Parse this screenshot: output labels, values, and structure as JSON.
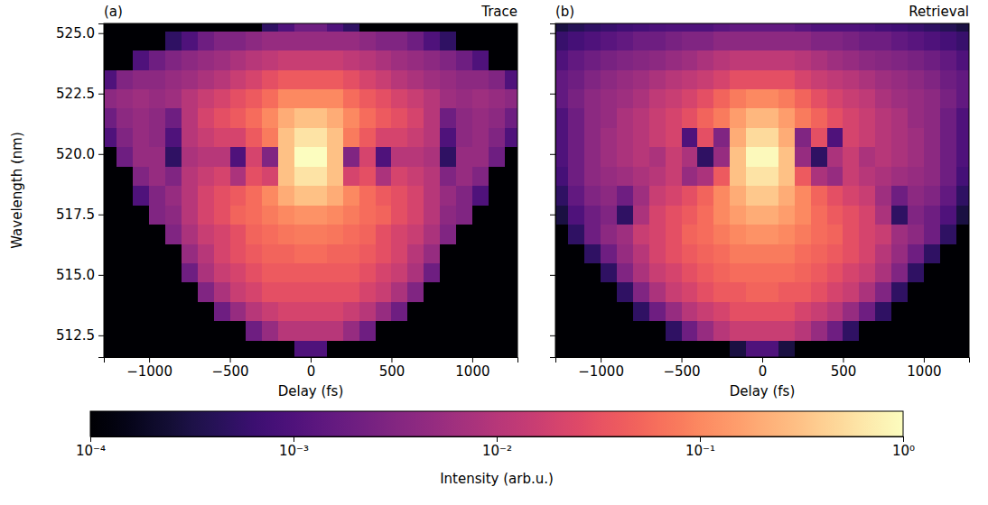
{
  "chart_data": [
    {
      "type": "heatmap",
      "title": "Trace",
      "annotation": "(a)",
      "xlabel": "Delay (fs)",
      "ylabel": "Wavelength (nm)",
      "xlim": [
        -1280,
        1280
      ],
      "ylim": [
        511.6,
        525.4
      ],
      "xticks": [
        {
          "value": -1000,
          "label": "−1000"
        },
        {
          "value": -500,
          "label": "−500"
        },
        0,
        500,
        1000
      ],
      "yticks": [
        512.5,
        {
          "value": 515,
          "label": "515.0"
        },
        517.5,
        {
          "value": 520,
          "label": "520.0"
        },
        522.5,
        {
          "value": 525,
          "label": "525.0"
        }
      ],
      "x": [
        -1250,
        -1150,
        -1050,
        -950,
        -850,
        -750,
        -650,
        -550,
        -450,
        -350,
        -250,
        -150,
        -50,
        50,
        150,
        250,
        350,
        450,
        550,
        650,
        750,
        850,
        950,
        1050,
        1150,
        1250
      ],
      "y": [
        511.9,
        512.7,
        513.5,
        514.3,
        515.1,
        515.9,
        516.7,
        517.5,
        518.3,
        519.1,
        519.9,
        520.7,
        521.5,
        522.3,
        523.1,
        523.9,
        524.7,
        525.5
      ],
      "values": [
        [
          0.0001,
          0.0001,
          0.0001,
          0.0001,
          0.0001,
          0.0001,
          0.0001,
          0.0001,
          0.0001,
          0.0001,
          0.0001,
          0.0001,
          0.001,
          0.001,
          0.0001,
          0.0001,
          0.0001,
          0.0001,
          0.0001,
          0.0001,
          0.0001,
          0.0001,
          0.0001,
          0.0001,
          0.0001,
          0.0001
        ],
        [
          0.0001,
          0.0001,
          0.0001,
          0.0001,
          0.0001,
          0.0001,
          0.0001,
          0.0001,
          0.0001,
          0.002,
          0.005,
          0.01,
          0.01,
          0.01,
          0.01,
          0.005,
          0.002,
          0.0001,
          0.0001,
          0.0001,
          0.0001,
          0.0001,
          0.0001,
          0.0001,
          0.0001,
          0.0001
        ],
        [
          0.0001,
          0.0001,
          0.0001,
          0.0001,
          0.0001,
          0.0001,
          0.0001,
          0.002,
          0.005,
          0.01,
          0.015,
          0.02,
          0.02,
          0.02,
          0.02,
          0.015,
          0.01,
          0.005,
          0.002,
          0.0001,
          0.0001,
          0.0001,
          0.0001,
          0.0001,
          0.0001,
          0.0001
        ],
        [
          0.0001,
          0.0001,
          0.0001,
          0.0001,
          0.0001,
          0.0001,
          0.003,
          0.008,
          0.015,
          0.02,
          0.03,
          0.03,
          0.03,
          0.03,
          0.03,
          0.03,
          0.02,
          0.015,
          0.008,
          0.003,
          0.0001,
          0.0001,
          0.0001,
          0.0001,
          0.0001,
          0.0001
        ],
        [
          0.0001,
          0.0001,
          0.0001,
          0.0001,
          0.0001,
          0.002,
          0.008,
          0.015,
          0.02,
          0.03,
          0.04,
          0.04,
          0.04,
          0.04,
          0.04,
          0.04,
          0.03,
          0.02,
          0.015,
          0.008,
          0.002,
          0.0001,
          0.0001,
          0.0001,
          0.0001,
          0.0001
        ],
        [
          0.0001,
          0.0001,
          0.0001,
          0.0001,
          0.0001,
          0.005,
          0.01,
          0.02,
          0.03,
          0.04,
          0.05,
          0.05,
          0.06,
          0.06,
          0.05,
          0.05,
          0.04,
          0.03,
          0.02,
          0.01,
          0.005,
          0.0001,
          0.0001,
          0.0001,
          0.0001,
          0.0001
        ],
        [
          0.0001,
          0.0001,
          0.0001,
          0.0001,
          0.003,
          0.008,
          0.015,
          0.02,
          0.03,
          0.05,
          0.06,
          0.07,
          0.08,
          0.08,
          0.07,
          0.06,
          0.05,
          0.03,
          0.02,
          0.015,
          0.008,
          0.003,
          0.0001,
          0.0001,
          0.0001,
          0.0001
        ],
        [
          0.0001,
          0.0001,
          0.0001,
          0.003,
          0.004,
          0.01,
          0.02,
          0.03,
          0.05,
          0.06,
          0.08,
          0.1,
          0.12,
          0.12,
          0.1,
          0.08,
          0.06,
          0.05,
          0.03,
          0.02,
          0.01,
          0.004,
          0.003,
          0.0001,
          0.0001,
          0.0001
        ],
        [
          0.0001,
          0.0001,
          0.001,
          0.003,
          0.005,
          0.01,
          0.02,
          0.03,
          0.04,
          0.06,
          0.1,
          0.2,
          0.3,
          0.3,
          0.2,
          0.1,
          0.06,
          0.04,
          0.03,
          0.02,
          0.01,
          0.005,
          0.003,
          0.001,
          0.0001,
          0.0001
        ],
        [
          0.0001,
          0.0001,
          0.003,
          0.005,
          0.003,
          0.01,
          0.015,
          0.02,
          0.008,
          0.03,
          0.02,
          0.3,
          0.6,
          0.6,
          0.3,
          0.02,
          0.03,
          0.008,
          0.02,
          0.015,
          0.01,
          0.003,
          0.005,
          0.003,
          0.0001,
          0.0001
        ],
        [
          0.0001,
          0.002,
          0.005,
          0.005,
          0.0005,
          0.008,
          0.01,
          0.01,
          0.001,
          0.02,
          0.003,
          0.3,
          1,
          1,
          0.3,
          0.003,
          0.02,
          0.001,
          0.01,
          0.01,
          0.008,
          0.0005,
          0.005,
          0.005,
          0.002,
          0.0001
        ],
        [
          0.001,
          0.003,
          0.005,
          0.004,
          0.001,
          0.01,
          0.015,
          0.02,
          0.02,
          0.04,
          0.08,
          0.3,
          0.6,
          0.6,
          0.3,
          0.08,
          0.04,
          0.02,
          0.02,
          0.015,
          0.01,
          0.001,
          0.004,
          0.005,
          0.003,
          0.001
        ],
        [
          0.002,
          0.004,
          0.005,
          0.004,
          0.002,
          0.01,
          0.02,
          0.03,
          0.04,
          0.06,
          0.1,
          0.2,
          0.3,
          0.3,
          0.2,
          0.1,
          0.06,
          0.04,
          0.03,
          0.02,
          0.01,
          0.002,
          0.004,
          0.005,
          0.004,
          0.002
        ],
        [
          0.004,
          0.005,
          0.006,
          0.005,
          0.006,
          0.01,
          0.015,
          0.02,
          0.03,
          0.04,
          0.06,
          0.1,
          0.1,
          0.1,
          0.1,
          0.06,
          0.04,
          0.03,
          0.02,
          0.015,
          0.01,
          0.006,
          0.005,
          0.006,
          0.005,
          0.004
        ],
        [
          0.001,
          0.003,
          0.004,
          0.004,
          0.005,
          0.006,
          0.008,
          0.01,
          0.015,
          0.02,
          0.03,
          0.04,
          0.04,
          0.04,
          0.04,
          0.03,
          0.02,
          0.015,
          0.01,
          0.008,
          0.006,
          0.005,
          0.004,
          0.004,
          0.003,
          0.001
        ],
        [
          0.0001,
          0.0001,
          0.001,
          0.002,
          0.003,
          0.004,
          0.005,
          0.006,
          0.008,
          0.01,
          0.012,
          0.015,
          0.015,
          0.015,
          0.015,
          0.012,
          0.01,
          0.008,
          0.006,
          0.005,
          0.004,
          0.003,
          0.002,
          0.001,
          0.0001,
          0.0001
        ],
        [
          0.0001,
          0.0001,
          0.0001,
          0.0001,
          0.0005,
          0.001,
          0.002,
          0.003,
          0.003,
          0.004,
          0.005,
          0.005,
          0.005,
          0.005,
          0.005,
          0.005,
          0.004,
          0.003,
          0.003,
          0.002,
          0.001,
          0.0005,
          0.0001,
          0.0001,
          0.0001,
          0.0001
        ],
        [
          0.0001,
          0.0001,
          0.0001,
          0.0001,
          0.0001,
          0.0001,
          0.0001,
          0.0001,
          0.0001,
          0.0001,
          0.0005,
          0.001,
          0.002,
          0.002,
          0.001,
          0.0005,
          0.0001,
          0.0001,
          0.0001,
          0.0001,
          0.0001,
          0.0001,
          0.0001,
          0.0001,
          0.0001,
          0.0001
        ]
      ]
    },
    {
      "type": "heatmap",
      "title": "Retrieval",
      "annotation": "(b)",
      "xlabel": "Delay (fs)",
      "tick_labels": "x",
      "xlim": [
        -1280,
        1280
      ],
      "ylim": [
        511.6,
        525.4
      ],
      "xticks": [
        {
          "value": -1000,
          "label": "−1000"
        },
        {
          "value": -500,
          "label": "−500"
        },
        0,
        500,
        1000
      ],
      "yticks": [
        512.5,
        515,
        517.5,
        520,
        522.5,
        525
      ],
      "x": [
        -1250,
        -1150,
        -1050,
        -950,
        -850,
        -750,
        -650,
        -550,
        -450,
        -350,
        -250,
        -150,
        -50,
        50,
        150,
        250,
        350,
        450,
        550,
        650,
        750,
        850,
        950,
        1050,
        1150,
        1250
      ],
      "y": [
        511.9,
        512.7,
        513.5,
        514.3,
        515.1,
        515.9,
        516.7,
        517.5,
        518.3,
        519.1,
        519.9,
        520.7,
        521.5,
        522.3,
        523.1,
        523.9,
        524.7,
        525.5
      ],
      "values": [
        [
          0.0001,
          0.0001,
          0.0001,
          0.0001,
          0.0001,
          0.0001,
          0.0001,
          0.0001,
          0.0001,
          0.0001,
          0.0001,
          0.0003,
          0.001,
          0.001,
          0.0003,
          0.0001,
          0.0001,
          0.0001,
          0.0001,
          0.0001,
          0.0001,
          0.0001,
          0.0001,
          0.0001,
          0.0001,
          0.0001
        ],
        [
          0.0001,
          0.0001,
          0.0001,
          0.0001,
          0.0001,
          0.0001,
          0.0001,
          0.0005,
          0.002,
          0.005,
          0.01,
          0.015,
          0.015,
          0.015,
          0.015,
          0.01,
          0.005,
          0.002,
          0.0005,
          0.0001,
          0.0001,
          0.0001,
          0.0001,
          0.0001,
          0.0001,
          0.0001
        ],
        [
          0.0001,
          0.0001,
          0.0001,
          0.0001,
          0.0001,
          0.0005,
          0.002,
          0.005,
          0.01,
          0.015,
          0.02,
          0.03,
          0.03,
          0.03,
          0.03,
          0.02,
          0.015,
          0.01,
          0.005,
          0.002,
          0.0005,
          0.0001,
          0.0001,
          0.0001,
          0.0001,
          0.0001
        ],
        [
          0.0001,
          0.0001,
          0.0001,
          0.0001,
          0.0005,
          0.003,
          0.008,
          0.015,
          0.02,
          0.03,
          0.04,
          0.04,
          0.05,
          0.05,
          0.04,
          0.04,
          0.03,
          0.02,
          0.015,
          0.008,
          0.003,
          0.0005,
          0.0001,
          0.0001,
          0.0001,
          0.0001
        ],
        [
          0.0001,
          0.0001,
          0.0001,
          0.0005,
          0.003,
          0.008,
          0.015,
          0.02,
          0.03,
          0.04,
          0.05,
          0.06,
          0.06,
          0.06,
          0.06,
          0.05,
          0.04,
          0.03,
          0.02,
          0.015,
          0.008,
          0.003,
          0.0005,
          0.0001,
          0.0001,
          0.0001
        ],
        [
          0.0001,
          0.0001,
          0.0005,
          0.002,
          0.005,
          0.01,
          0.02,
          0.03,
          0.04,
          0.05,
          0.06,
          0.08,
          0.08,
          0.08,
          0.08,
          0.06,
          0.05,
          0.04,
          0.03,
          0.02,
          0.01,
          0.005,
          0.002,
          0.0005,
          0.0001,
          0.0001
        ],
        [
          0.0001,
          0.0005,
          0.002,
          0.004,
          0.006,
          0.015,
          0.02,
          0.03,
          0.05,
          0.06,
          0.08,
          0.1,
          0.12,
          0.12,
          0.1,
          0.08,
          0.06,
          0.05,
          0.03,
          0.02,
          0.015,
          0.006,
          0.004,
          0.002,
          0.0005,
          0.0001
        ],
        [
          0.0003,
          0.001,
          0.002,
          0.003,
          0.0005,
          0.008,
          0.02,
          0.03,
          0.04,
          0.06,
          0.1,
          0.15,
          0.2,
          0.2,
          0.15,
          0.1,
          0.06,
          0.04,
          0.03,
          0.02,
          0.008,
          0.0005,
          0.003,
          0.002,
          0.001,
          0.0003
        ],
        [
          0.0005,
          0.0015,
          0.003,
          0.004,
          0.002,
          0.006,
          0.015,
          0.02,
          0.03,
          0.05,
          0.1,
          0.2,
          0.35,
          0.35,
          0.2,
          0.1,
          0.05,
          0.03,
          0.02,
          0.015,
          0.006,
          0.002,
          0.004,
          0.003,
          0.0015,
          0.0005
        ],
        [
          0.0008,
          0.002,
          0.004,
          0.005,
          0.006,
          0.008,
          0.01,
          0.015,
          0.005,
          0.008,
          0.04,
          0.3,
          0.6,
          0.6,
          0.3,
          0.04,
          0.008,
          0.005,
          0.015,
          0.01,
          0.008,
          0.006,
          0.005,
          0.004,
          0.002,
          0.0008
        ],
        [
          0.001,
          0.002,
          0.004,
          0.006,
          0.008,
          0.01,
          0.008,
          0.015,
          0.008,
          0.0005,
          0.005,
          0.3,
          0.9,
          0.9,
          0.3,
          0.005,
          0.0005,
          0.008,
          0.015,
          0.008,
          0.01,
          0.008,
          0.006,
          0.004,
          0.002,
          0.001
        ],
        [
          0.001,
          0.002,
          0.004,
          0.006,
          0.008,
          0.01,
          0.015,
          0.02,
          0.001,
          0.03,
          0.003,
          0.2,
          0.5,
          0.5,
          0.2,
          0.003,
          0.03,
          0.001,
          0.02,
          0.015,
          0.01,
          0.008,
          0.006,
          0.004,
          0.002,
          0.001
        ],
        [
          0.001,
          0.002,
          0.004,
          0.005,
          0.008,
          0.01,
          0.015,
          0.02,
          0.03,
          0.05,
          0.08,
          0.15,
          0.25,
          0.25,
          0.15,
          0.08,
          0.05,
          0.03,
          0.02,
          0.015,
          0.01,
          0.008,
          0.005,
          0.004,
          0.002,
          0.001
        ],
        [
          0.0015,
          0.0025,
          0.004,
          0.005,
          0.006,
          0.008,
          0.012,
          0.015,
          0.02,
          0.03,
          0.05,
          0.08,
          0.1,
          0.1,
          0.08,
          0.05,
          0.03,
          0.02,
          0.015,
          0.012,
          0.008,
          0.006,
          0.005,
          0.004,
          0.0025,
          0.0015
        ],
        [
          0.0015,
          0.002,
          0.003,
          0.004,
          0.005,
          0.006,
          0.008,
          0.01,
          0.012,
          0.015,
          0.02,
          0.03,
          0.03,
          0.03,
          0.03,
          0.02,
          0.015,
          0.012,
          0.01,
          0.008,
          0.006,
          0.005,
          0.004,
          0.003,
          0.002,
          0.0015
        ],
        [
          0.001,
          0.0015,
          0.002,
          0.0025,
          0.003,
          0.0035,
          0.004,
          0.005,
          0.006,
          0.008,
          0.01,
          0.012,
          0.012,
          0.012,
          0.012,
          0.01,
          0.008,
          0.006,
          0.005,
          0.004,
          0.0035,
          0.003,
          0.0025,
          0.002,
          0.0015,
          0.001
        ],
        [
          0.0006,
          0.0008,
          0.001,
          0.0012,
          0.0015,
          0.002,
          0.002,
          0.0025,
          0.003,
          0.003,
          0.004,
          0.004,
          0.004,
          0.004,
          0.004,
          0.004,
          0.003,
          0.003,
          0.0025,
          0.002,
          0.002,
          0.0015,
          0.0012,
          0.001,
          0.0008,
          0.0006
        ],
        [
          0.0003,
          0.0004,
          0.0005,
          0.0006,
          0.0007,
          0.0008,
          0.0009,
          0.001,
          0.001,
          0.001,
          0.0012,
          0.0015,
          0.0015,
          0.0015,
          0.0015,
          0.0012,
          0.001,
          0.001,
          0.001,
          0.0009,
          0.0008,
          0.0007,
          0.0006,
          0.0005,
          0.0004,
          0.0003
        ]
      ]
    }
  ],
  "colorbar": {
    "label": "Intensity (arb.u.)",
    "log": true,
    "range": [
      0.0001,
      1
    ],
    "ticks": [
      {
        "value": 0.0001,
        "label": "10⁻⁴"
      },
      {
        "value": 0.001,
        "label": "10⁻³"
      },
      {
        "value": 0.01,
        "label": "10⁻²"
      },
      {
        "value": 0.1,
        "label": "10⁻¹"
      },
      {
        "value": 1,
        "label": "10⁰"
      }
    ]
  }
}
